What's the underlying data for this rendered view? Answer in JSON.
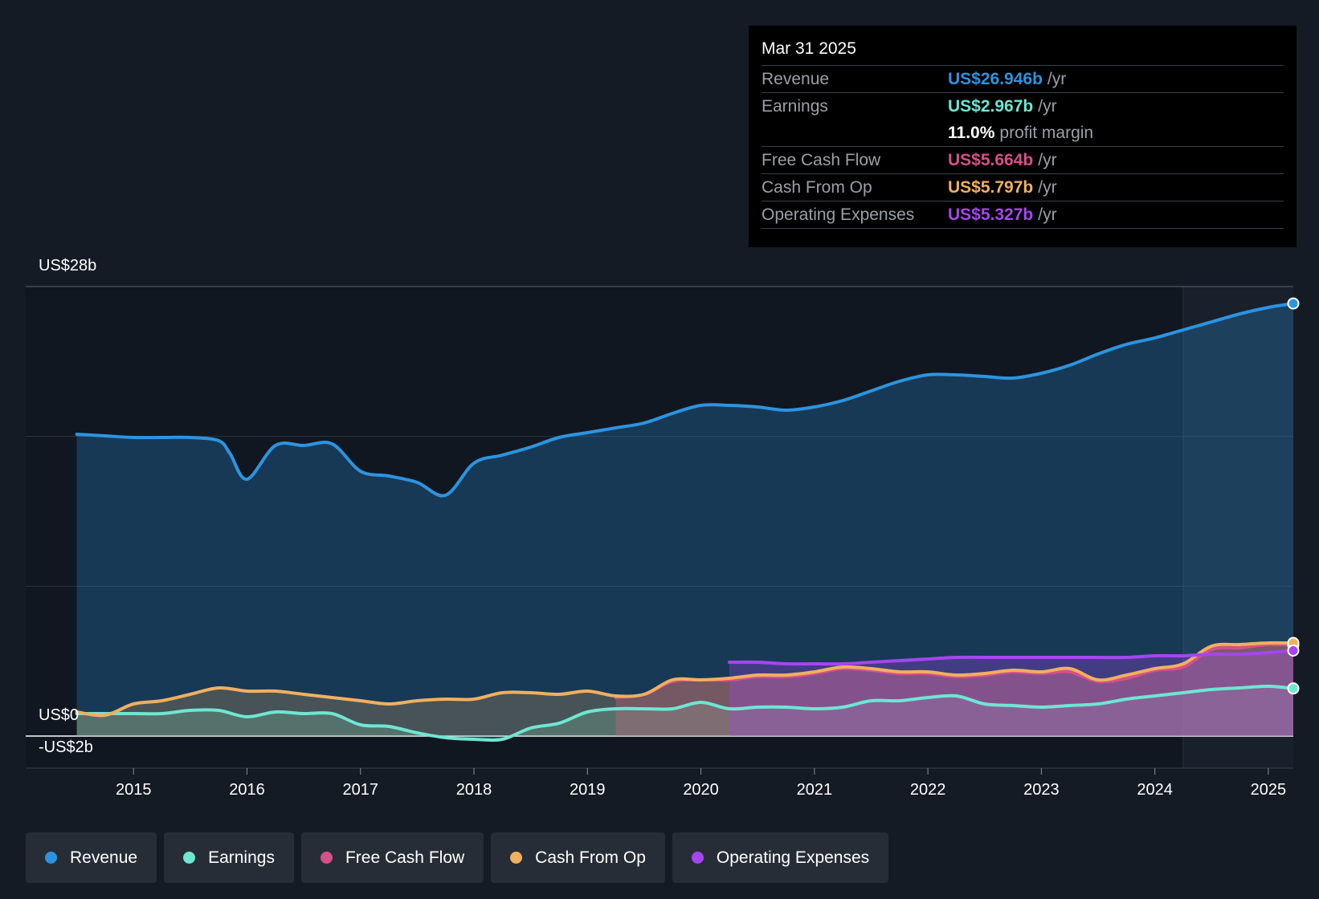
{
  "tooltip": {
    "date": "Mar 31 2025",
    "rows": [
      {
        "label": "Revenue",
        "value": "US$26.946b",
        "unit": "/yr",
        "color": "#2c94e0"
      },
      {
        "label": "Earnings",
        "value": "US$2.967b",
        "unit": "/yr",
        "color": "#6ee6d2"
      },
      {
        "label": "",
        "value": "11.0%",
        "unit": "profit margin",
        "color": "#ffffff"
      },
      {
        "label": "Free Cash Flow",
        "value": "US$5.664b",
        "unit": "/yr",
        "color": "#d6508a"
      },
      {
        "label": "Cash From Op",
        "value": "US$5.797b",
        "unit": "/yr",
        "color": "#f0b060"
      },
      {
        "label": "Operating Expenses",
        "value": "US$5.327b",
        "unit": "/yr",
        "color": "#a546f0"
      }
    ]
  },
  "legend": [
    {
      "label": "Revenue",
      "color": "#2c94e0"
    },
    {
      "label": "Earnings",
      "color": "#6ee6d2"
    },
    {
      "label": "Free Cash Flow",
      "color": "#d6508a"
    },
    {
      "label": "Cash From Op",
      "color": "#f0b060"
    },
    {
      "label": "Operating Expenses",
      "color": "#a546f0"
    }
  ],
  "chart_data": {
    "type": "area",
    "title": "",
    "xlabel": "",
    "ylabel": "",
    "y_tick_labels": {
      "top": "US$28b",
      "zero": "US$0",
      "bottom": "-US$2b"
    },
    "ylim": [
      -2,
      28
    ],
    "xlim": [
      2014.05,
      2025.22
    ],
    "x_ticks": [
      2015,
      2016,
      2017,
      2018,
      2019,
      2020,
      2021,
      2022,
      2023,
      2024,
      2025
    ],
    "forecast_start": 2024.25,
    "series": [
      {
        "name": "Revenue",
        "color": "#2c94e0",
        "points": [
          [
            2014.5,
            18.8
          ],
          [
            2014.75,
            18.7
          ],
          [
            2015.0,
            18.6
          ],
          [
            2015.25,
            18.6
          ],
          [
            2015.5,
            18.6
          ],
          [
            2015.75,
            18.4
          ],
          [
            2015.85,
            17.6
          ],
          [
            2016.0,
            16.0
          ],
          [
            2016.25,
            18.1
          ],
          [
            2016.5,
            18.1
          ],
          [
            2016.75,
            18.2
          ],
          [
            2017.0,
            16.5
          ],
          [
            2017.25,
            16.2
          ],
          [
            2017.5,
            15.8
          ],
          [
            2017.75,
            15.0
          ],
          [
            2018.0,
            17.0
          ],
          [
            2018.25,
            17.5
          ],
          [
            2018.5,
            18.0
          ],
          [
            2018.75,
            18.6
          ],
          [
            2019.0,
            18.9
          ],
          [
            2019.25,
            19.2
          ],
          [
            2019.5,
            19.5
          ],
          [
            2019.75,
            20.1
          ],
          [
            2020.0,
            20.6
          ],
          [
            2020.25,
            20.6
          ],
          [
            2020.5,
            20.5
          ],
          [
            2020.75,
            20.3
          ],
          [
            2021.0,
            20.5
          ],
          [
            2021.25,
            20.9
          ],
          [
            2021.5,
            21.5
          ],
          [
            2021.75,
            22.1
          ],
          [
            2022.0,
            22.5
          ],
          [
            2022.25,
            22.5
          ],
          [
            2022.5,
            22.4
          ],
          [
            2022.75,
            22.3
          ],
          [
            2023.0,
            22.6
          ],
          [
            2023.25,
            23.1
          ],
          [
            2023.5,
            23.8
          ],
          [
            2023.75,
            24.4
          ],
          [
            2024.0,
            24.8
          ],
          [
            2024.25,
            25.3
          ],
          [
            2024.5,
            25.8
          ],
          [
            2024.75,
            26.3
          ],
          [
            2025.0,
            26.7
          ],
          [
            2025.22,
            26.946
          ]
        ]
      },
      {
        "name": "Earnings",
        "color": "#6ee6d2",
        "points": [
          [
            2014.5,
            1.4
          ],
          [
            2014.75,
            1.4
          ],
          [
            2015.0,
            1.4
          ],
          [
            2015.25,
            1.4
          ],
          [
            2015.5,
            1.6
          ],
          [
            2015.75,
            1.6
          ],
          [
            2016.0,
            1.2
          ],
          [
            2016.25,
            1.5
          ],
          [
            2016.5,
            1.4
          ],
          [
            2016.75,
            1.4
          ],
          [
            2017.0,
            0.7
          ],
          [
            2017.25,
            0.6
          ],
          [
            2017.5,
            0.2
          ],
          [
            2017.75,
            -0.1
          ],
          [
            2018.0,
            -0.2
          ],
          [
            2018.25,
            -0.2
          ],
          [
            2018.5,
            0.5
          ],
          [
            2018.75,
            0.8
          ],
          [
            2019.0,
            1.5
          ],
          [
            2019.25,
            1.7
          ],
          [
            2019.5,
            1.7
          ],
          [
            2019.75,
            1.7
          ],
          [
            2020.0,
            2.1
          ],
          [
            2020.25,
            1.7
          ],
          [
            2020.5,
            1.8
          ],
          [
            2020.75,
            1.8
          ],
          [
            2021.0,
            1.7
          ],
          [
            2021.25,
            1.8
          ],
          [
            2021.5,
            2.2
          ],
          [
            2021.75,
            2.2
          ],
          [
            2022.0,
            2.4
          ],
          [
            2022.25,
            2.5
          ],
          [
            2022.5,
            2.0
          ],
          [
            2022.75,
            1.9
          ],
          [
            2023.0,
            1.8
          ],
          [
            2023.25,
            1.9
          ],
          [
            2023.5,
            2.0
          ],
          [
            2023.75,
            2.3
          ],
          [
            2024.0,
            2.5
          ],
          [
            2024.25,
            2.7
          ],
          [
            2024.5,
            2.9
          ],
          [
            2024.75,
            3.0
          ],
          [
            2025.0,
            3.1
          ],
          [
            2025.22,
            2.967
          ]
        ]
      },
      {
        "name": "Free Cash Flow",
        "color": "#d6508a",
        "points": [
          [
            2019.25,
            2.4
          ],
          [
            2019.5,
            2.6
          ],
          [
            2019.75,
            3.4
          ],
          [
            2020.0,
            3.5
          ],
          [
            2020.25,
            3.5
          ],
          [
            2020.5,
            3.7
          ],
          [
            2020.75,
            3.7
          ],
          [
            2021.0,
            3.9
          ],
          [
            2021.25,
            4.2
          ],
          [
            2021.5,
            4.1
          ],
          [
            2021.75,
            3.9
          ],
          [
            2022.0,
            3.9
          ],
          [
            2022.25,
            3.7
          ],
          [
            2022.5,
            3.8
          ],
          [
            2022.75,
            4.0
          ],
          [
            2023.0,
            3.9
          ],
          [
            2023.25,
            4.0
          ],
          [
            2023.5,
            3.4
          ],
          [
            2023.75,
            3.6
          ],
          [
            2024.0,
            4.1
          ],
          [
            2024.25,
            4.3
          ],
          [
            2024.5,
            5.4
          ],
          [
            2024.75,
            5.5
          ],
          [
            2025.0,
            5.7
          ],
          [
            2025.22,
            5.664
          ]
        ]
      },
      {
        "name": "Cash From Op",
        "color": "#f0b060",
        "points": [
          [
            2014.5,
            1.5
          ],
          [
            2014.75,
            1.3
          ],
          [
            2015.0,
            2.0
          ],
          [
            2015.25,
            2.2
          ],
          [
            2015.5,
            2.6
          ],
          [
            2015.75,
            3.0
          ],
          [
            2016.0,
            2.8
          ],
          [
            2016.25,
            2.8
          ],
          [
            2016.5,
            2.6
          ],
          [
            2016.75,
            2.4
          ],
          [
            2017.0,
            2.2
          ],
          [
            2017.25,
            2.0
          ],
          [
            2017.5,
            2.2
          ],
          [
            2017.75,
            2.3
          ],
          [
            2018.0,
            2.3
          ],
          [
            2018.25,
            2.7
          ],
          [
            2018.5,
            2.7
          ],
          [
            2018.75,
            2.6
          ],
          [
            2019.0,
            2.8
          ],
          [
            2019.25,
            2.5
          ],
          [
            2019.5,
            2.6
          ],
          [
            2019.75,
            3.5
          ],
          [
            2020.0,
            3.5
          ],
          [
            2020.25,
            3.6
          ],
          [
            2020.5,
            3.8
          ],
          [
            2020.75,
            3.8
          ],
          [
            2021.0,
            4.0
          ],
          [
            2021.25,
            4.3
          ],
          [
            2021.5,
            4.2
          ],
          [
            2021.75,
            4.0
          ],
          [
            2022.0,
            4.0
          ],
          [
            2022.25,
            3.8
          ],
          [
            2022.5,
            3.9
          ],
          [
            2022.75,
            4.1
          ],
          [
            2023.0,
            4.0
          ],
          [
            2023.25,
            4.2
          ],
          [
            2023.5,
            3.5
          ],
          [
            2023.75,
            3.8
          ],
          [
            2024.0,
            4.2
          ],
          [
            2024.25,
            4.5
          ],
          [
            2024.5,
            5.6
          ],
          [
            2024.75,
            5.7
          ],
          [
            2025.0,
            5.8
          ],
          [
            2025.22,
            5.797
          ]
        ]
      },
      {
        "name": "Operating Expenses",
        "color": "#a546f0",
        "points": [
          [
            2020.25,
            4.6
          ],
          [
            2020.5,
            4.6
          ],
          [
            2020.75,
            4.5
          ],
          [
            2021.0,
            4.5
          ],
          [
            2021.25,
            4.5
          ],
          [
            2021.5,
            4.6
          ],
          [
            2021.75,
            4.7
          ],
          [
            2022.0,
            4.8
          ],
          [
            2022.25,
            4.9
          ],
          [
            2022.5,
            4.9
          ],
          [
            2022.75,
            4.9
          ],
          [
            2023.0,
            4.9
          ],
          [
            2023.25,
            4.9
          ],
          [
            2023.5,
            4.9
          ],
          [
            2023.75,
            4.9
          ],
          [
            2024.0,
            5.0
          ],
          [
            2024.25,
            5.0
          ],
          [
            2024.5,
            5.1
          ],
          [
            2024.75,
            5.1
          ],
          [
            2025.0,
            5.2
          ],
          [
            2025.22,
            5.327
          ]
        ]
      }
    ]
  }
}
